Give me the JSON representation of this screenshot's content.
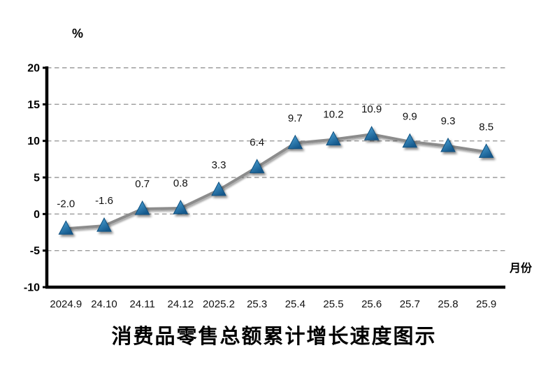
{
  "chart_data": {
    "type": "line",
    "title": "消费品零售总额累计增长速度图示",
    "ylabel": "%",
    "xlabel": "月份",
    "categories": [
      "2024.9",
      "24.10",
      "24.11",
      "24.12",
      "2025.2",
      "25.3",
      "25.4",
      "25.5",
      "25.6",
      "25.7",
      "25.8",
      "25.9"
    ],
    "values": [
      -2.0,
      -1.6,
      0.7,
      0.8,
      3.3,
      6.4,
      9.7,
      10.2,
      10.9,
      9.9,
      9.3,
      8.5
    ],
    "value_labels": [
      "-2.0",
      "-1.6",
      "0.7",
      "0.8",
      "3.3",
      "6.4",
      "9.7",
      "10.2",
      "10.9",
      "9.9",
      "9.3",
      "8.5"
    ],
    "ylim": [
      -10,
      20
    ],
    "ytick_step": 5,
    "ytick_labels": [
      "-10",
      "-5",
      "0",
      "5",
      "10",
      "15",
      "20"
    ],
    "grid": "horizontal-dashed",
    "legend": "none",
    "marker": "triangle",
    "colors": {
      "marker_top": "#4FA8DC",
      "marker_bottom": "#16598C",
      "marker_edge": "#11507F",
      "line": "#8C8C8C",
      "gridline": "#9B9B9B",
      "axis": "#000000"
    }
  }
}
